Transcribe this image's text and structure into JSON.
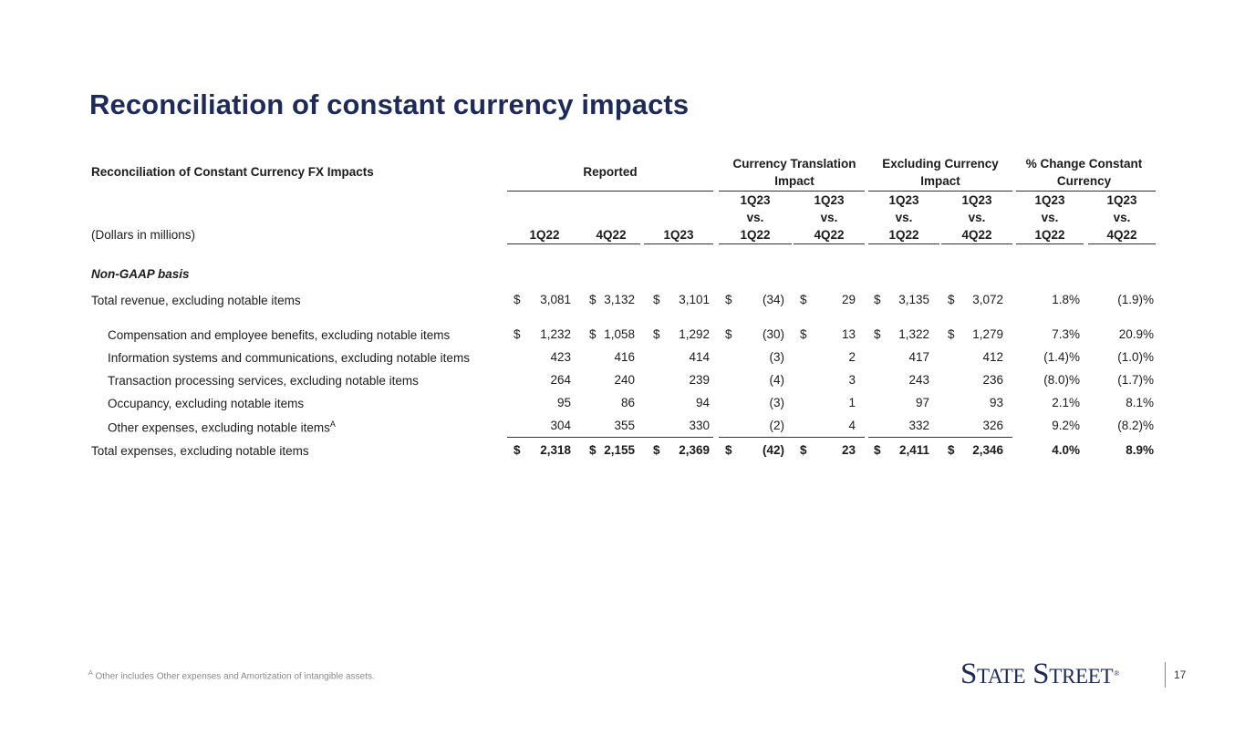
{
  "page": {
    "title": "Reconciliation of constant currency impacts",
    "footnote_marker": "A",
    "footnote_text": "Other includes Other expenses and Amortization of intangible assets.",
    "logo_text": "State Street",
    "logo_reg": "®",
    "page_number": "17"
  },
  "table": {
    "caption": "Reconciliation of Constant Currency FX Impacts",
    "units": "(Dollars in millions)",
    "groups": {
      "reported": "Reported",
      "currency_translation_1": "Currency Translation",
      "currency_translation_2": "Impact",
      "excluding_currency_1": "Excluding Currency",
      "excluding_currency_2": "Impact",
      "pct_change_1": "% Change Constant",
      "pct_change_2": "Currency"
    },
    "col_headers": [
      {
        "line1": "",
        "line2": "",
        "line3": "1Q22"
      },
      {
        "line1": "",
        "line2": "",
        "line3": "4Q22"
      },
      {
        "line1": "",
        "line2": "",
        "line3": "1Q23"
      },
      {
        "line1": "1Q23",
        "line2": "vs.",
        "line3": "1Q22"
      },
      {
        "line1": "1Q23",
        "line2": "vs.",
        "line3": "4Q22"
      },
      {
        "line1": "1Q23",
        "line2": "vs.",
        "line3": "1Q22"
      },
      {
        "line1": "1Q23",
        "line2": "vs.",
        "line3": "4Q22"
      },
      {
        "line1": "1Q23",
        "line2": "vs.",
        "line3": "1Q22"
      },
      {
        "line1": "1Q23",
        "line2": "vs.",
        "line3": "4Q22"
      }
    ],
    "section_label": "Non-GAAP basis",
    "rows": [
      {
        "label": "Total revenue, excluding notable items",
        "sup": "",
        "bold": false,
        "values": [
          "$",
          "3,081",
          "$",
          "3,132",
          "$",
          "3,101",
          "$",
          "(34)",
          "$",
          "29",
          "$",
          "3,135",
          "$",
          "3,072",
          "1.8%",
          "(1.9)%"
        ]
      },
      {
        "label": "Compensation and employee benefits, excluding notable items",
        "sup": "",
        "bold": false,
        "values": [
          "$",
          "1,232",
          "$",
          "1,058",
          "$",
          "1,292",
          "$",
          "(30)",
          "$",
          "13",
          "$",
          "1,322",
          "$",
          "1,279",
          "7.3%",
          "20.9%"
        ]
      },
      {
        "label": "Information systems and communications, excluding notable items",
        "sup": "",
        "bold": false,
        "values": [
          "",
          "423",
          "",
          "416",
          "",
          "414",
          "",
          "(3)",
          "",
          "2",
          "",
          "417",
          "",
          "412",
          "(1.4)%",
          "(1.0)%"
        ]
      },
      {
        "label": "Transaction processing services, excluding notable items",
        "sup": "",
        "bold": false,
        "values": [
          "",
          "264",
          "",
          "240",
          "",
          "239",
          "",
          "(4)",
          "",
          "3",
          "",
          "243",
          "",
          "236",
          "(8.0)%",
          "(1.7)%"
        ]
      },
      {
        "label": "Occupancy, excluding notable items",
        "sup": "",
        "bold": false,
        "values": [
          "",
          "95",
          "",
          "86",
          "",
          "94",
          "",
          "(3)",
          "",
          "1",
          "",
          "97",
          "",
          "93",
          "2.1%",
          "8.1%"
        ]
      },
      {
        "label": "Other expenses, excluding notable items",
        "sup": "A",
        "bold": false,
        "values": [
          "",
          "304",
          "",
          "355",
          "",
          "330",
          "",
          "(2)",
          "",
          "4",
          "",
          "332",
          "",
          "326",
          "9.2%",
          "(8.2)%"
        ]
      },
      {
        "label": "Total expenses, excluding notable items",
        "sup": "",
        "bold": true,
        "values": [
          "$",
          "2,318",
          "$",
          "2,155",
          "$",
          "2,369",
          "$",
          "(42)",
          "$",
          "23",
          "$",
          "2,411",
          "$",
          "2,346",
          "4.0%",
          "8.9%"
        ]
      }
    ]
  }
}
